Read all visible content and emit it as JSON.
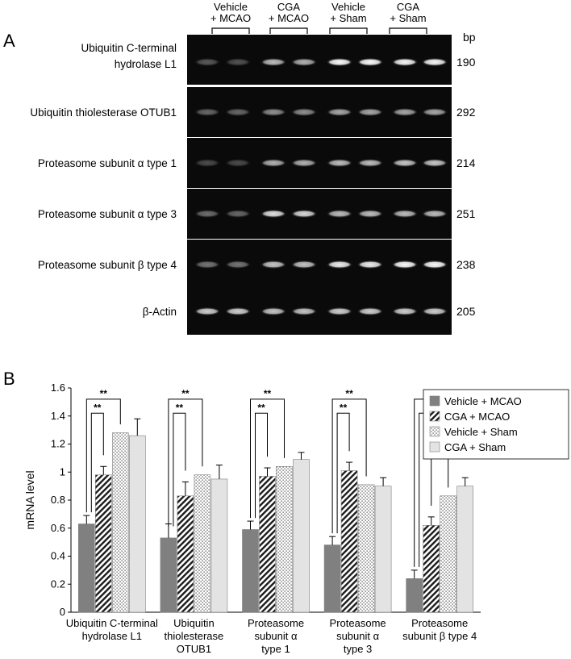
{
  "panel_a": {
    "label": "A",
    "lane_headers": [
      {
        "line1": "Vehicle",
        "line2": "+ MCAO"
      },
      {
        "line1": "CGA",
        "line2": "+ MCAO"
      },
      {
        "line1": "Vehicle",
        "line2": "+ Sham"
      },
      {
        "line1": "CGA",
        "line2": "+ Sham"
      }
    ],
    "bp_header": "bp",
    "rows": [
      {
        "label_lines": [
          "Ubiquitin C-terminal",
          "hydrolase L1"
        ],
        "bp": "190",
        "band_levels": [
          0.15,
          0.12,
          0.55,
          0.5,
          0.95,
          0.95,
          0.9,
          0.9
        ]
      },
      {
        "label_lines": [
          "Ubiquitin thiolesterase OTUB1"
        ],
        "bp": "292",
        "band_levels": [
          0.2,
          0.2,
          0.35,
          0.35,
          0.45,
          0.45,
          0.45,
          0.45
        ]
      },
      {
        "label_lines": [
          "Proteasome subunit α type 1"
        ],
        "bp": "214",
        "band_levels": [
          0.1,
          0.1,
          0.5,
          0.5,
          0.55,
          0.55,
          0.6,
          0.6
        ]
      },
      {
        "label_lines": [
          "Proteasome subunit α type 3"
        ],
        "bp": "251",
        "band_levels": [
          0.22,
          0.2,
          0.75,
          0.7,
          0.55,
          0.55,
          0.55,
          0.55
        ]
      },
      {
        "label_lines": [
          "Proteasome  subunit β type 4"
        ],
        "bp": "238",
        "band_levels": [
          0.25,
          0.25,
          0.6,
          0.6,
          0.85,
          0.85,
          0.95,
          0.95
        ]
      },
      {
        "label_lines": [
          "β-Actin"
        ],
        "bp": "205",
        "band_levels": [
          0.65,
          0.65,
          0.6,
          0.6,
          0.65,
          0.65,
          0.65,
          0.65
        ]
      }
    ]
  },
  "panel_b": {
    "label": "B",
    "chart_data": {
      "type": "bar",
      "ylabel": "mRNA level",
      "ylim": [
        0,
        1.6
      ],
      "yticks": [
        "0",
        "0.2",
        "0.4",
        "0.6",
        "0.8",
        "1",
        "1.2",
        "1.4",
        "1.6"
      ],
      "categories": [
        {
          "lines": [
            "Ubiquitin C-terminal",
            "hydrolase L1"
          ]
        },
        {
          "lines": [
            "Ubiquitin",
            "thiolesterase",
            "OTUB1"
          ]
        },
        {
          "lines": [
            "Proteasome",
            "subunit α",
            "type 1"
          ]
        },
        {
          "lines": [
            "Proteasome",
            "subunit α",
            "type 3"
          ]
        },
        {
          "lines": [
            "Proteasome",
            "subunit β type 4"
          ]
        }
      ],
      "series": [
        {
          "name": "Vehicle + MCAO",
          "values": [
            0.63,
            0.53,
            0.59,
            0.48,
            0.24
          ],
          "errors": [
            0.06,
            0.1,
            0.06,
            0.06,
            0.06
          ],
          "pattern": "solid-dark"
        },
        {
          "name": "CGA + MCAO",
          "values": [
            0.98,
            0.83,
            0.97,
            1.01,
            0.62
          ],
          "errors": [
            0.06,
            0.1,
            0.06,
            0.06,
            0.06
          ],
          "pattern": "hatch"
        },
        {
          "name": "Vehicle + Sham",
          "values": [
            1.28,
            0.98,
            1.04,
            0.91,
            0.83
          ],
          "errors": [
            0.0,
            0.0,
            0.0,
            0.0,
            0.0
          ],
          "pattern": "dots"
        },
        {
          "name": "CGA + Sham",
          "values": [
            1.26,
            0.95,
            1.09,
            0.9,
            0.9
          ],
          "errors": [
            0.12,
            0.1,
            0.05,
            0.06,
            0.06
          ],
          "pattern": "solid-light"
        }
      ],
      "legend_position": "top-right",
      "significance": [
        {
          "group": 0,
          "inner": "**",
          "outer": "**"
        },
        {
          "group": 1,
          "inner": "**",
          "outer": "**"
        },
        {
          "group": 2,
          "inner": "**",
          "outer": "**"
        },
        {
          "group": 3,
          "inner": "**",
          "outer": "**"
        },
        {
          "group": 4,
          "inner": "*",
          "outer": "**"
        }
      ]
    }
  }
}
